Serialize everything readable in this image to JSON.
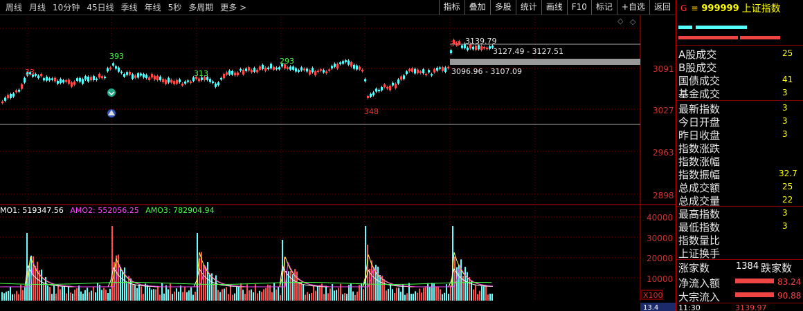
{
  "toolbar": {
    "periods": [
      "周线",
      "月线",
      "10分钟",
      "45日线",
      "季线",
      "年线",
      "5秒",
      "多周期",
      "更多 >"
    ],
    "tools": [
      "指标",
      "叠加",
      "多股",
      "统计",
      "画线",
      "F10",
      "标记",
      "+自选",
      "返回"
    ]
  },
  "chart": {
    "price_ticks": [
      "3091",
      "3027",
      "2963",
      "2898"
    ],
    "volume_ticks": [
      "40000",
      "30000",
      "20000",
      "10000"
    ],
    "price_annotations": [
      "3139.79",
      "3127.49 - 3127.51",
      "3096.96 - 3107.09"
    ],
    "peak_labels": [
      "393",
      "313",
      "293",
      "33",
      "348",
      "36"
    ],
    "legend": [
      {
        "label": "MO1: 519347.56",
        "color": "#ffffff"
      },
      {
        "label": "AMO2: 552056.25",
        "color": "#ff44ff"
      },
      {
        "label": "AMO3: 782904.94",
        "color": "#44ff44"
      }
    ],
    "multiplier": "X100",
    "bottom_left_value": "13.4"
  },
  "panel": {
    "code": "999999",
    "name": "上证指数",
    "marker": "G",
    "menu_icon": "hamburger-icon",
    "rows": [
      {
        "label": "A股成交",
        "value": "25"
      },
      {
        "label": "B股成交",
        "value": ""
      },
      {
        "label": "国债成交",
        "value": "41"
      },
      {
        "label": "基金成交",
        "value": "3"
      },
      {
        "label": "最新指数",
        "value": "3"
      },
      {
        "label": "今日开盘",
        "value": "3"
      },
      {
        "label": "昨日收盘",
        "value": "3"
      },
      {
        "label": "指数涨跌",
        "value": ""
      },
      {
        "label": "指数涨幅",
        "value": ""
      },
      {
        "label": "指数振幅",
        "value": "32.7"
      },
      {
        "label": "总成交额",
        "value": "25"
      },
      {
        "label": "总成交量",
        "value": "22"
      },
      {
        "label": "最高指数",
        "value": "3"
      },
      {
        "label": "最低指数",
        "value": "3"
      },
      {
        "label": "指数量比",
        "value": ""
      },
      {
        "label": "上证换手",
        "value": ""
      }
    ],
    "rise_label": "涨家数",
    "rise_value": "1384",
    "fall_label": "跌家数",
    "net_inflow_label": "净流入额",
    "net_inflow_value": "83.24",
    "block_inflow_label": "大宗流入",
    "block_inflow_value": "90.88",
    "time": "11:30",
    "time_value": "3139.97"
  }
}
